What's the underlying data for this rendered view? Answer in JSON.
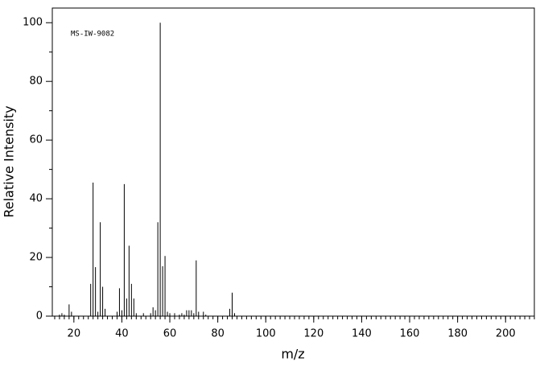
{
  "chart_data": {
    "type": "stick",
    "annotation": "MS-IW-9082",
    "x_label": "m/z",
    "y_label": "Relative Intensity",
    "x": [
      14,
      15,
      16,
      18,
      19,
      27,
      28,
      29,
      30,
      31,
      32,
      33,
      38,
      39,
      40,
      41,
      42,
      43,
      44,
      45,
      46,
      49,
      52,
      53,
      54,
      55,
      56,
      57,
      58,
      59,
      60,
      62,
      64,
      65,
      66,
      67,
      68,
      69,
      70,
      71,
      72,
      74,
      75,
      85,
      86,
      87
    ],
    "values": [
      0.5,
      1,
      0.5,
      4,
      1.5,
      11,
      45.5,
      16.7,
      1.5,
      32,
      10,
      2.5,
      1.5,
      9.5,
      2,
      45,
      6,
      24,
      11,
      6,
      1,
      1,
      1,
      3,
      2,
      32,
      100,
      17,
      20.5,
      1.5,
      1,
      1,
      0.5,
      1,
      0.5,
      2,
      2,
      2,
      1,
      19,
      1.5,
      1.5,
      0.5,
      2.5,
      8,
      1
    ],
    "color": "#000000",
    "xlim": [
      11,
      212
    ],
    "ylim": [
      0,
      105
    ],
    "xticks": [
      20,
      40,
      60,
      80,
      100,
      120,
      140,
      160,
      180,
      200
    ],
    "yticks": [
      0,
      20,
      40,
      60,
      80,
      100
    ]
  }
}
